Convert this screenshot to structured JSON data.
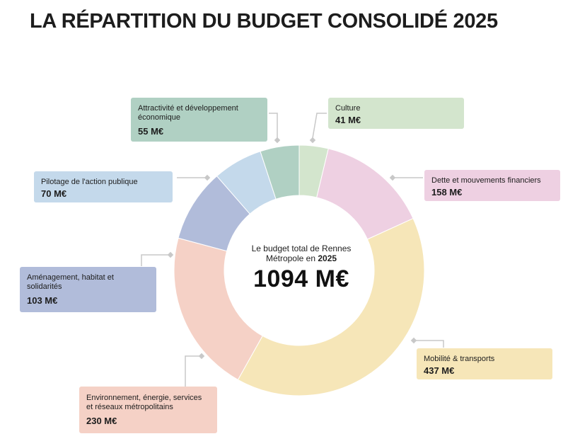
{
  "header": {
    "title": "LA RÉPARTITION DU BUDGET CONSOLIDÉ 2025"
  },
  "center": {
    "caption_line1": "Le budget total de Rennes",
    "caption_line2": "Métropole en",
    "caption_year": "2025",
    "total": "1094 M€"
  },
  "chart_data": {
    "type": "pie",
    "variant": "donut",
    "total": 1094,
    "unit": "M€",
    "slices": [
      {
        "name": "Culture",
        "value": 41,
        "label": "41 M€",
        "color": "#d3e5cd"
      },
      {
        "name": "Dette et mouvements financiers",
        "value": 158,
        "label": "158 M€",
        "color": "#eed0e2"
      },
      {
        "name": "Mobilité & transports",
        "value": 437,
        "label": "437 M€",
        "color": "#f6e6b8"
      },
      {
        "name": "Environnement, énergie, services et réseaux métropolitains",
        "value": 230,
        "label": "230 M€",
        "color": "#f5d1c6"
      },
      {
        "name": "Aménagement, habitat et solidarités",
        "value": 103,
        "label": "103 M€",
        "color": "#b1bcda"
      },
      {
        "name": "Pilotage de l'action publique",
        "value": 70,
        "label": "70 M€",
        "color": "#c4d9eb"
      },
      {
        "name": "Attractivité et développement économique",
        "value": 55,
        "label": "55 M€",
        "color": "#b0d0c3"
      }
    ]
  }
}
